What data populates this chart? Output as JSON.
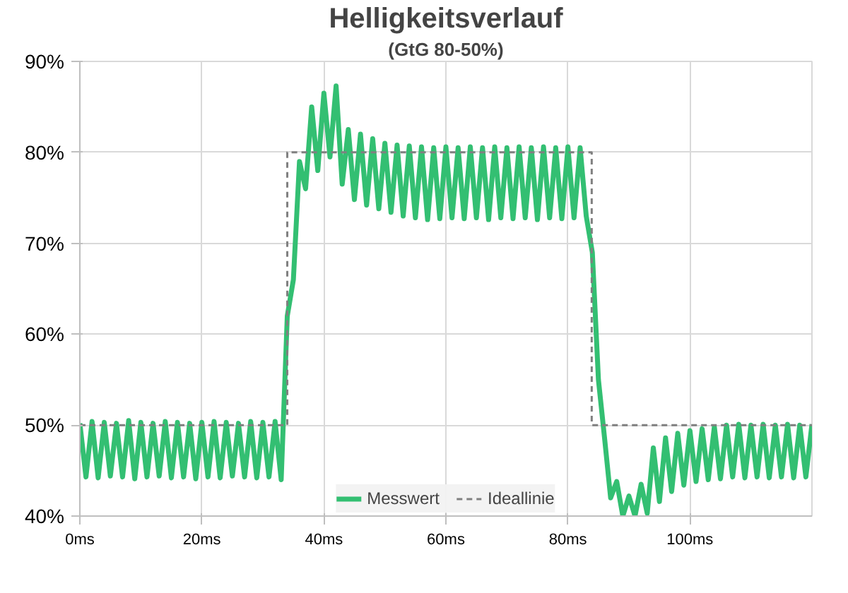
{
  "chart_data": {
    "type": "line",
    "title": "Helligkeitsverlauf",
    "subtitle": "(GtG 80-50%)",
    "xlim": [
      0,
      120
    ],
    "ylim": [
      40,
      90
    ],
    "xticks": [
      {
        "value": 0,
        "label": "0ms"
      },
      {
        "value": 20,
        "label": "20ms"
      },
      {
        "value": 40,
        "label": "40ms"
      },
      {
        "value": 60,
        "label": "60ms"
      },
      {
        "value": 80,
        "label": "80ms"
      },
      {
        "value": 100,
        "label": "100ms"
      }
    ],
    "yticks": [
      {
        "value": 40,
        "label": "40%"
      },
      {
        "value": 50,
        "label": "50%"
      },
      {
        "value": 60,
        "label": "60%"
      },
      {
        "value": 70,
        "label": "70%"
      },
      {
        "value": 80,
        "label": "80%"
      },
      {
        "value": 90,
        "label": "90%"
      }
    ],
    "grid": true,
    "legend": "bottom",
    "series": [
      {
        "name": "Messwert",
        "color": "#33bf72",
        "line_style": "solid",
        "x": [
          0,
          1,
          2,
          3,
          4,
          5,
          6,
          7,
          8,
          9,
          10,
          11,
          12,
          13,
          14,
          15,
          16,
          17,
          18,
          19,
          20,
          21,
          22,
          23,
          24,
          25,
          26,
          27,
          28,
          29,
          30,
          31,
          32,
          33,
          34,
          35,
          36,
          37,
          38,
          39,
          40,
          41,
          42,
          43,
          44,
          45,
          46,
          47,
          48,
          49,
          50,
          51,
          52,
          53,
          54,
          55,
          56,
          57,
          58,
          59,
          60,
          61,
          62,
          63,
          64,
          65,
          66,
          67,
          68,
          69,
          70,
          71,
          72,
          73,
          74,
          75,
          76,
          77,
          78,
          79,
          80,
          81,
          82,
          83,
          84,
          85,
          86,
          87,
          88,
          89,
          90,
          91,
          92,
          93,
          94,
          95,
          96,
          97,
          98,
          99,
          100,
          101,
          102,
          103,
          104,
          105,
          106,
          107,
          108,
          109,
          110,
          111,
          112,
          113,
          114,
          115,
          116,
          117,
          118,
          119,
          120
        ],
        "values": [
          50.2,
          44.3,
          50.4,
          44.2,
          50.3,
          44.4,
          50.2,
          44.3,
          50.5,
          44.1,
          50.3,
          44.3,
          50.2,
          44.4,
          50.4,
          44.2,
          50.3,
          44.3,
          50.2,
          44.1,
          50.3,
          44.3,
          50.4,
          44.2,
          50.3,
          44.4,
          50.2,
          44.3,
          50.4,
          44.2,
          50.3,
          44.3,
          50.4,
          44.0,
          62,
          66,
          79,
          76,
          85,
          78,
          86.5,
          79.5,
          87.3,
          76.5,
          82.5,
          74.8,
          82.0,
          74.2,
          81.5,
          73.8,
          81.0,
          73.4,
          80.8,
          73.0,
          80.7,
          72.8,
          80.6,
          72.6,
          80.5,
          72.7,
          80.6,
          72.8,
          80.5,
          72.7,
          80.6,
          72.8,
          80.5,
          72.6,
          80.6,
          72.8,
          80.5,
          72.7,
          80.6,
          72.8,
          80.5,
          72.6,
          80.6,
          72.8,
          80.5,
          72.7,
          80.6,
          72.8,
          80.5,
          73.0,
          69,
          55,
          48.6,
          42,
          43.8,
          40,
          42.2,
          40,
          43.5,
          40.3,
          47.5,
          41.6,
          48.6,
          42.7,
          49.1,
          43.4,
          49.4,
          43.8,
          49.6,
          44.0,
          49.8,
          44.1,
          50.0,
          44.3,
          50.1,
          44.2,
          50.0,
          44.3,
          50.1,
          44.2,
          50.0,
          44.3,
          50.1,
          44.2,
          50.0,
          44.3,
          50.1
        ]
      },
      {
        "name": "Ideallinie",
        "color": "#808080",
        "line_style": "dashed",
        "x": [
          0,
          34,
          34,
          83.9,
          83.9,
          120
        ],
        "values": [
          50,
          50,
          80,
          80,
          50,
          50
        ]
      }
    ]
  }
}
